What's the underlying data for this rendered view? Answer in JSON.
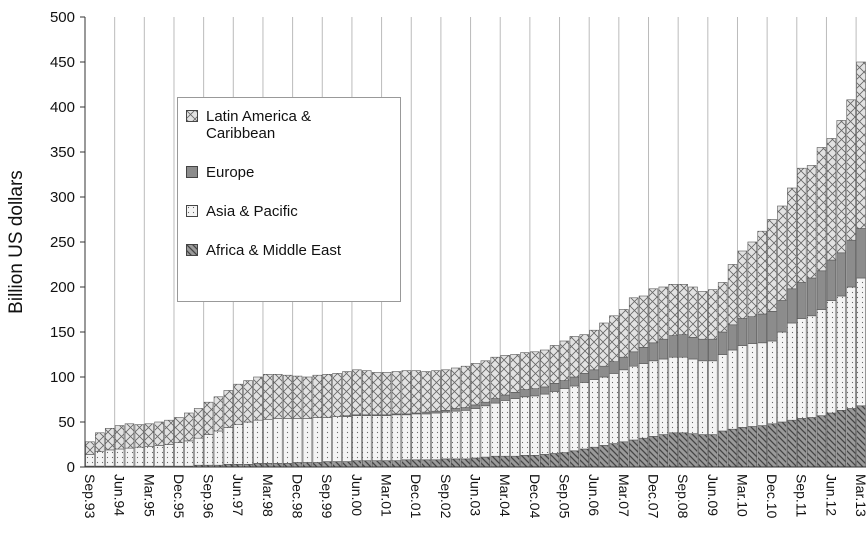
{
  "chart_data": {
    "type": "stacked-bar",
    "y_label": "Billion US dollars",
    "ylim": [
      0,
      500
    ],
    "yticks": [
      0,
      50,
      100,
      150,
      200,
      250,
      300,
      350,
      400,
      450,
      500
    ],
    "grid": "x",
    "categories": [
      "Sep.93",
      null,
      null,
      "Jun.94",
      null,
      null,
      "Mar.95",
      null,
      null,
      "Dec.95",
      null,
      null,
      "Sep.96",
      null,
      null,
      "Jun.97",
      null,
      null,
      "Mar.98",
      null,
      null,
      "Dec.98",
      null,
      null,
      "Sep.99",
      null,
      null,
      "Jun.00",
      null,
      null,
      "Mar.01",
      null,
      null,
      "Dec.01",
      null,
      null,
      "Sep.02",
      null,
      null,
      "Jun.03",
      null,
      null,
      "Mar.04",
      null,
      null,
      "Dec.04",
      null,
      null,
      "Sep.05",
      null,
      null,
      "Jun.06",
      null,
      null,
      "Mar.07",
      null,
      null,
      "Dec.07",
      null,
      null,
      "Sep.08",
      null,
      null,
      "Jun.09",
      null,
      null,
      "Mar.10",
      null,
      null,
      "Dec.10",
      null,
      null,
      "Sep.11",
      null,
      null,
      "Jun.12",
      null,
      null,
      "Mar.13"
    ],
    "series": [
      {
        "name": "Africa & Middle East",
        "color": "#9a9a9a",
        "values": [
          1,
          1,
          1,
          1,
          1,
          1,
          1,
          1,
          1,
          1,
          1,
          2,
          2,
          2,
          3,
          3,
          3,
          4,
          4,
          4,
          4,
          5,
          5,
          5,
          6,
          6,
          6,
          7,
          7,
          7,
          7,
          7,
          8,
          8,
          8,
          8,
          9,
          9,
          9,
          10,
          11,
          12,
          12,
          12,
          13,
          13,
          14,
          15,
          16,
          18,
          20,
          22,
          24,
          26,
          28,
          30,
          32,
          34,
          36,
          38,
          38,
          37,
          36,
          36,
          40,
          42,
          44,
          45,
          46,
          48,
          50,
          52,
          54,
          55,
          57,
          60,
          63,
          65,
          68
        ]
      },
      {
        "name": "Asia & Pacific",
        "color": "#f4f4f4",
        "values": [
          13,
          16,
          18,
          19,
          20,
          21,
          22,
          23,
          24,
          26,
          28,
          30,
          34,
          38,
          41,
          44,
          47,
          48,
          49,
          50,
          50,
          49,
          49,
          50,
          49,
          50,
          50,
          50,
          50,
          50,
          50,
          51,
          50,
          51,
          51,
          52,
          52,
          53,
          54,
          55,
          57,
          59,
          62,
          64,
          65,
          66,
          67,
          69,
          71,
          72,
          74,
          75,
          76,
          78,
          80,
          82,
          83,
          84,
          84,
          84,
          84,
          83,
          82,
          82,
          85,
          88,
          91,
          92,
          92,
          92,
          100,
          108,
          111,
          113,
          118,
          125,
          127,
          135,
          142
        ]
      },
      {
        "name": "Europe",
        "color": "#8c8c8c",
        "values": [
          0,
          0,
          0,
          0,
          0,
          0,
          0,
          0,
          0,
          0,
          0,
          0,
          0,
          0,
          0,
          0,
          0,
          0,
          0,
          0,
          0,
          0,
          0,
          0,
          0,
          0,
          1,
          1,
          1,
          1,
          1,
          1,
          1,
          1,
          2,
          2,
          2,
          3,
          3,
          4,
          4,
          5,
          6,
          7,
          8,
          8,
          8,
          9,
          9,
          10,
          10,
          11,
          12,
          13,
          14,
          16,
          18,
          20,
          22,
          24,
          25,
          24,
          24,
          24,
          25,
          28,
          30,
          30,
          32,
          33,
          35,
          38,
          40,
          42,
          43,
          45,
          48,
          52,
          55
        ]
      },
      {
        "name": "Latin America & Caribbean",
        "color": "#e2e2e2",
        "values": [
          14,
          21,
          24,
          26,
          27,
          25,
          25,
          26,
          27,
          28,
          31,
          33,
          36,
          38,
          41,
          45,
          46,
          48,
          50,
          49,
          48,
          47,
          46,
          47,
          48,
          48,
          49,
          50,
          49,
          47,
          47,
          47,
          48,
          47,
          45,
          45,
          45,
          45,
          46,
          46,
          46,
          46,
          44,
          42,
          41,
          41,
          41,
          42,
          44,
          45,
          43,
          44,
          48,
          51,
          53,
          60,
          57,
          60,
          58,
          57,
          56,
          56,
          53,
          55,
          55,
          67,
          75,
          83,
          92,
          102,
          105,
          112,
          127,
          125,
          137,
          135,
          147,
          156,
          185
        ]
      }
    ]
  }
}
